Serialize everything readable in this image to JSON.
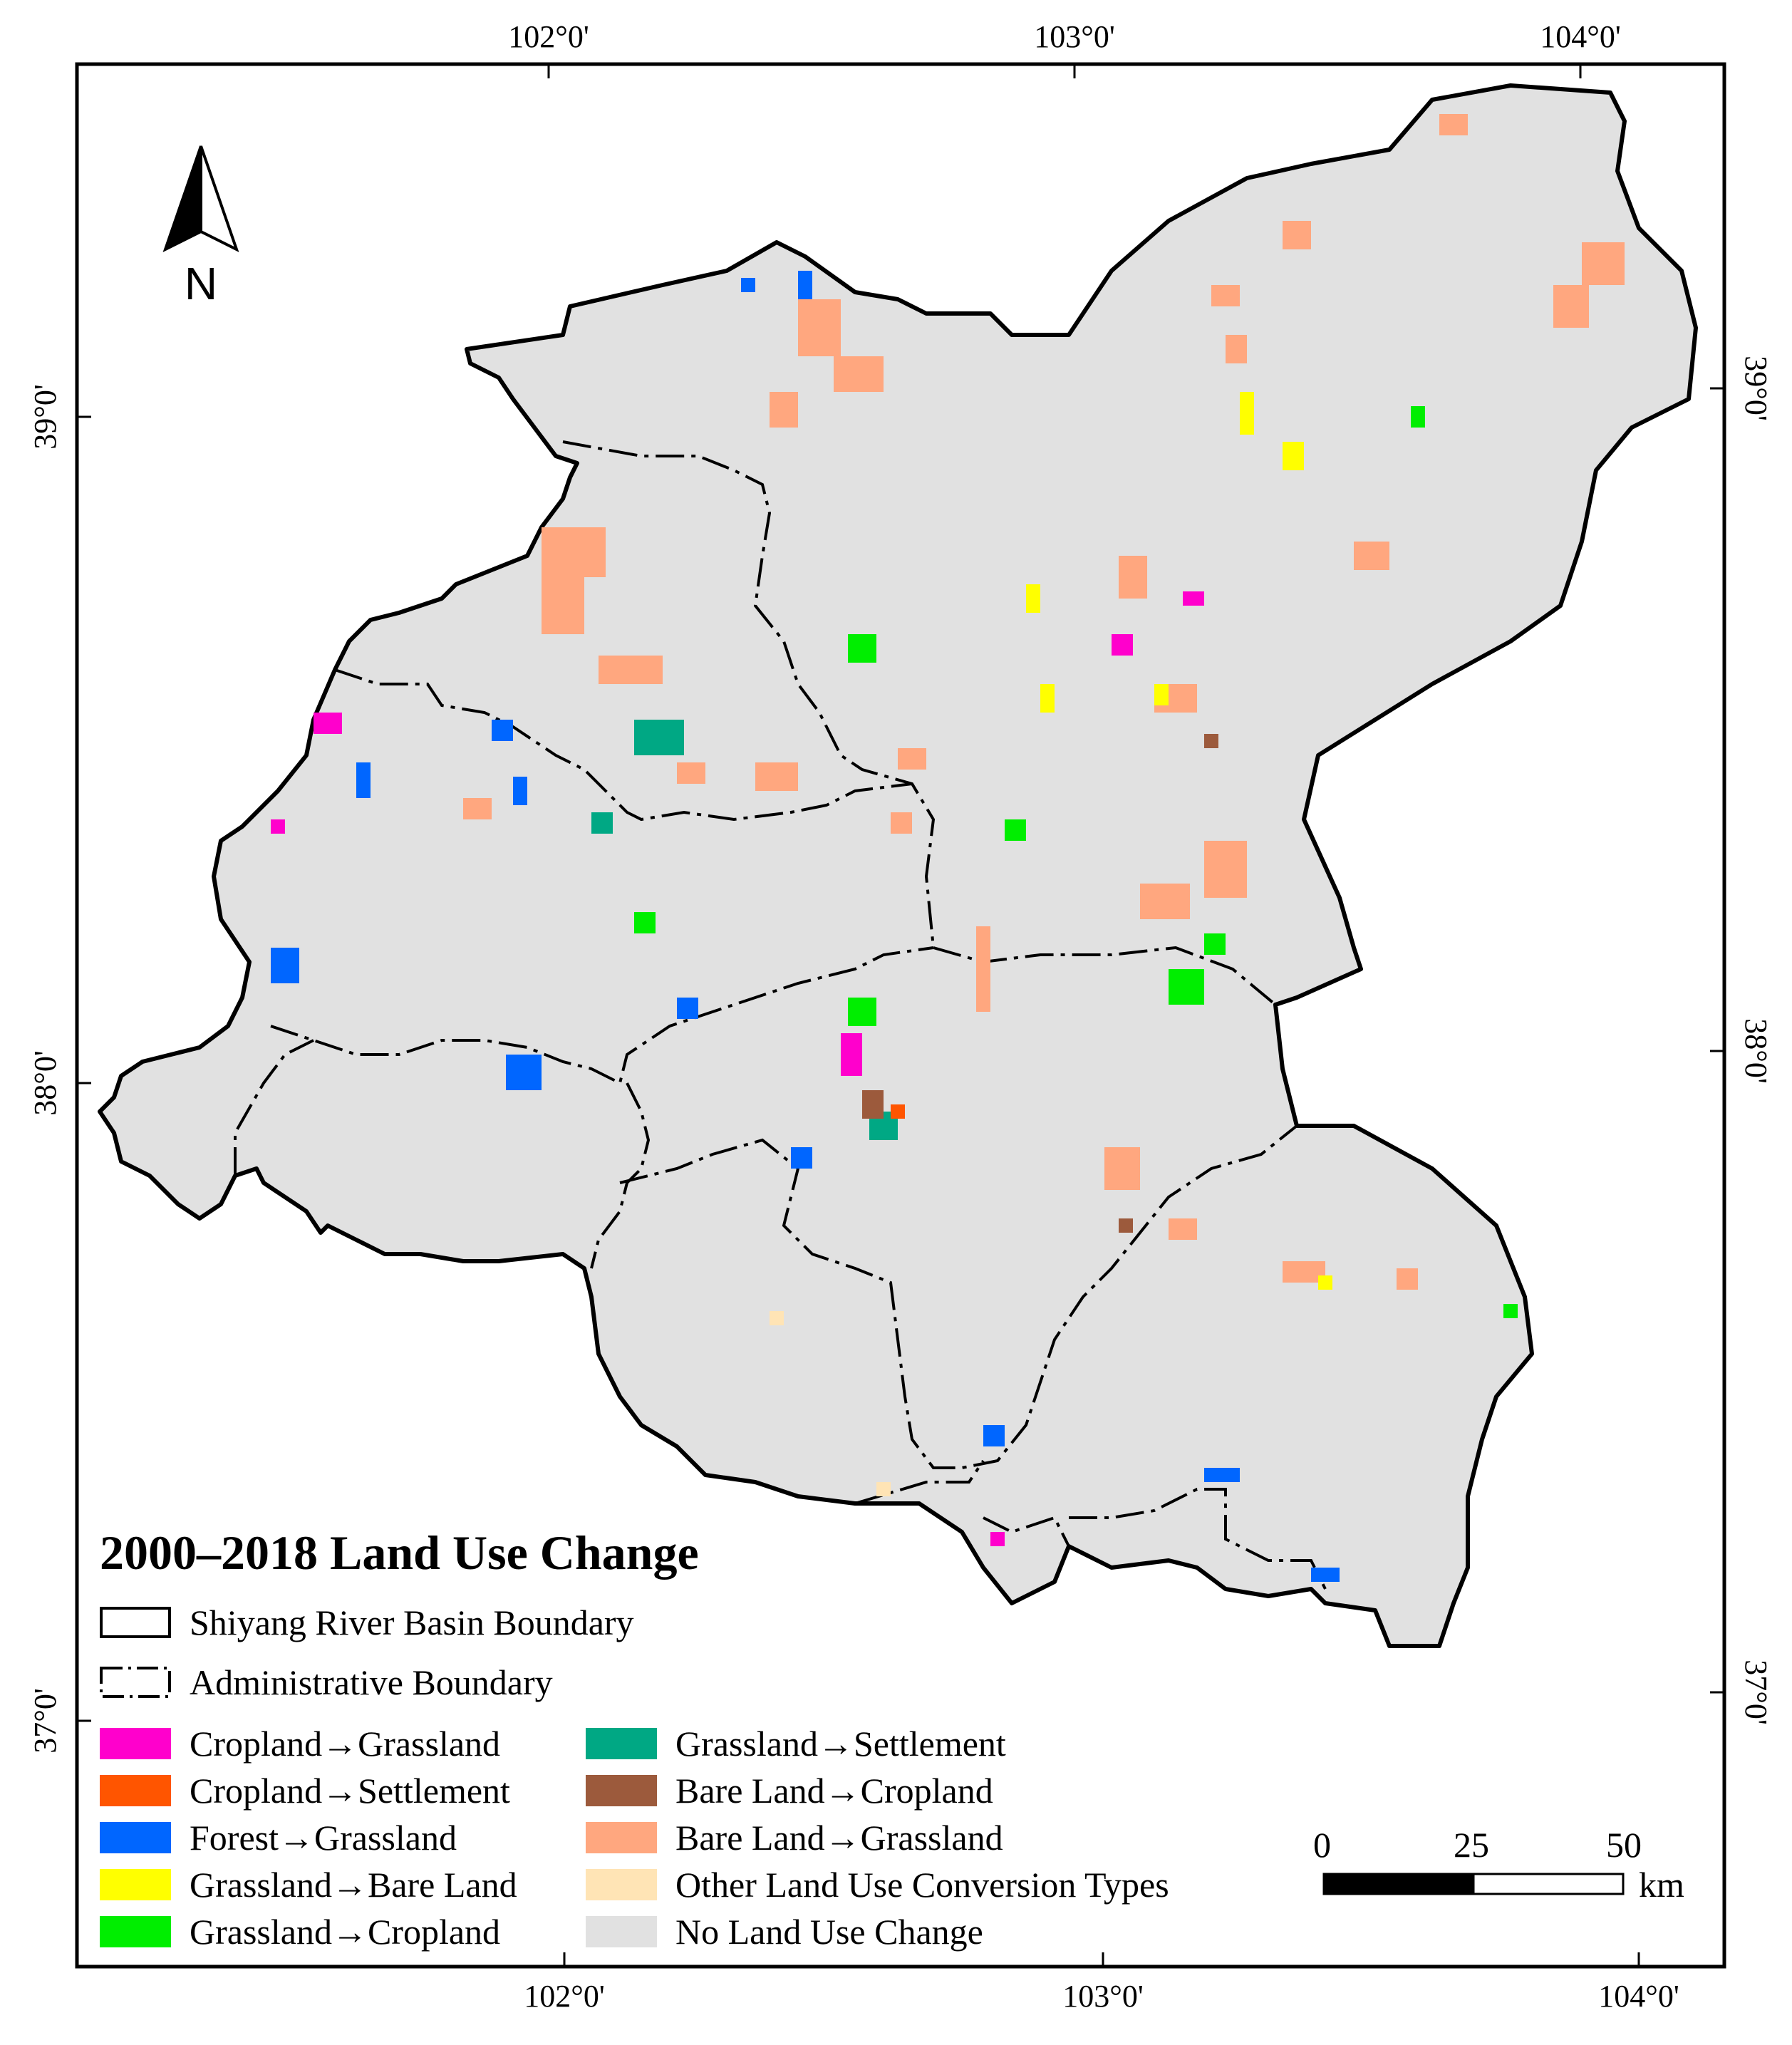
{
  "legend": {
    "title": "2000–2018 Land Use Change",
    "boundaries": [
      {
        "label": "Shiyang River Basin Boundary",
        "style": "solid"
      },
      {
        "label": "Administrative Boundary",
        "style": "dashdot"
      }
    ],
    "classes_left": [
      {
        "label": "Cropland→Grassland",
        "color": "#ff00cc"
      },
      {
        "label": "Cropland→Settlement",
        "color": "#ff5500"
      },
      {
        "label": "Forest→Grassland",
        "color": "#0066ff"
      },
      {
        "label": "Grassland→Bare Land",
        "color": "#ffff00"
      },
      {
        "label": "Grassland→Cropland",
        "color": "#00ee00"
      }
    ],
    "classes_right": [
      {
        "label": "Grassland→Settlement",
        "color": "#00a884"
      },
      {
        "label": "Bare Land→Cropland",
        "color": "#9c5a3c"
      },
      {
        "label": "Bare Land→Grassland",
        "color": "#ffa77f"
      },
      {
        "label": "Other Land Use Conversion Types",
        "color": "#ffe4b5"
      },
      {
        "label": "No Land Use Change",
        "color": "#e1e1e1"
      }
    ]
  },
  "graticule": {
    "top_lon": [
      "102°0'",
      "103°0'",
      "104°0'"
    ],
    "bottom_lon": [
      "102°0'",
      "103°0'",
      "104°0'"
    ],
    "left_lat": [
      "39°0'",
      "38°0'",
      "37°0'"
    ],
    "right_lat": [
      "39°0'",
      "38°0'",
      "37°0'"
    ]
  },
  "north_arrow": {
    "label": "N"
  },
  "scale_bar": {
    "ticks": [
      "0",
      "25",
      "50"
    ],
    "unit": "km"
  }
}
